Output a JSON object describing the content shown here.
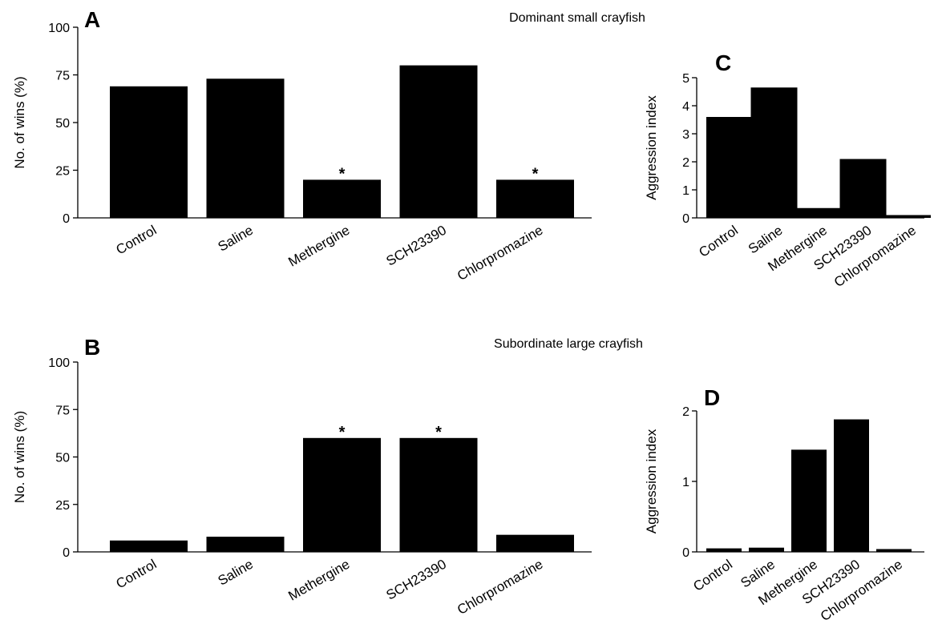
{
  "figure": {
    "title_top": "Dominant small crayfish",
    "title_bottom": "Subordinate large crayfish"
  },
  "chart_data": [
    {
      "id": "A",
      "panel_label": "A",
      "type": "bar",
      "categories": [
        "Control",
        "Saline",
        "Methergine",
        "SCH23390",
        "Chlorpromazine"
      ],
      "values": [
        69,
        73,
        20,
        80,
        20
      ],
      "significance": [
        "",
        "",
        "*",
        "",
        "*"
      ],
      "ylabel": "No. of wins (%)",
      "ylim": [
        0,
        100
      ],
      "yticks": [
        0,
        25,
        50,
        75,
        100
      ],
      "bar_color": "#000000",
      "grid": false
    },
    {
      "id": "B",
      "panel_label": "B",
      "type": "bar",
      "categories": [
        "Control",
        "Saline",
        "Methergine",
        "SCH23390",
        "Chlorpromazine"
      ],
      "values": [
        6,
        8,
        60,
        60,
        9
      ],
      "significance": [
        "",
        "",
        "*",
        "*",
        ""
      ],
      "ylabel": "No. of wins (%)",
      "ylim": [
        0,
        100
      ],
      "yticks": [
        0,
        25,
        50,
        75,
        100
      ],
      "bar_color": "#000000",
      "grid": false
    },
    {
      "id": "C",
      "panel_label": "C",
      "type": "bar",
      "categories": [
        "Control",
        "Saline",
        "Methergine",
        "SCH23390",
        "Chlorpromazine"
      ],
      "values": [
        3.6,
        4.65,
        0.35,
        2.1,
        0.1
      ],
      "ylabel": "Aggression index",
      "ylim": [
        0,
        5
      ],
      "yticks": [
        0,
        1,
        2,
        3,
        4,
        5
      ],
      "bar_color": "#000000",
      "grid": false
    },
    {
      "id": "D",
      "panel_label": "D",
      "type": "bar",
      "categories": [
        "Control",
        "Saline",
        "Methergine",
        "SCH23390",
        "Chlorpromazine"
      ],
      "values": [
        0.05,
        0.06,
        1.45,
        1.88,
        0.04
      ],
      "ylabel": "Aggression index",
      "ylim": [
        0,
        2
      ],
      "yticks": [
        0,
        1,
        2
      ],
      "bar_color": "#000000",
      "grid": false
    }
  ]
}
